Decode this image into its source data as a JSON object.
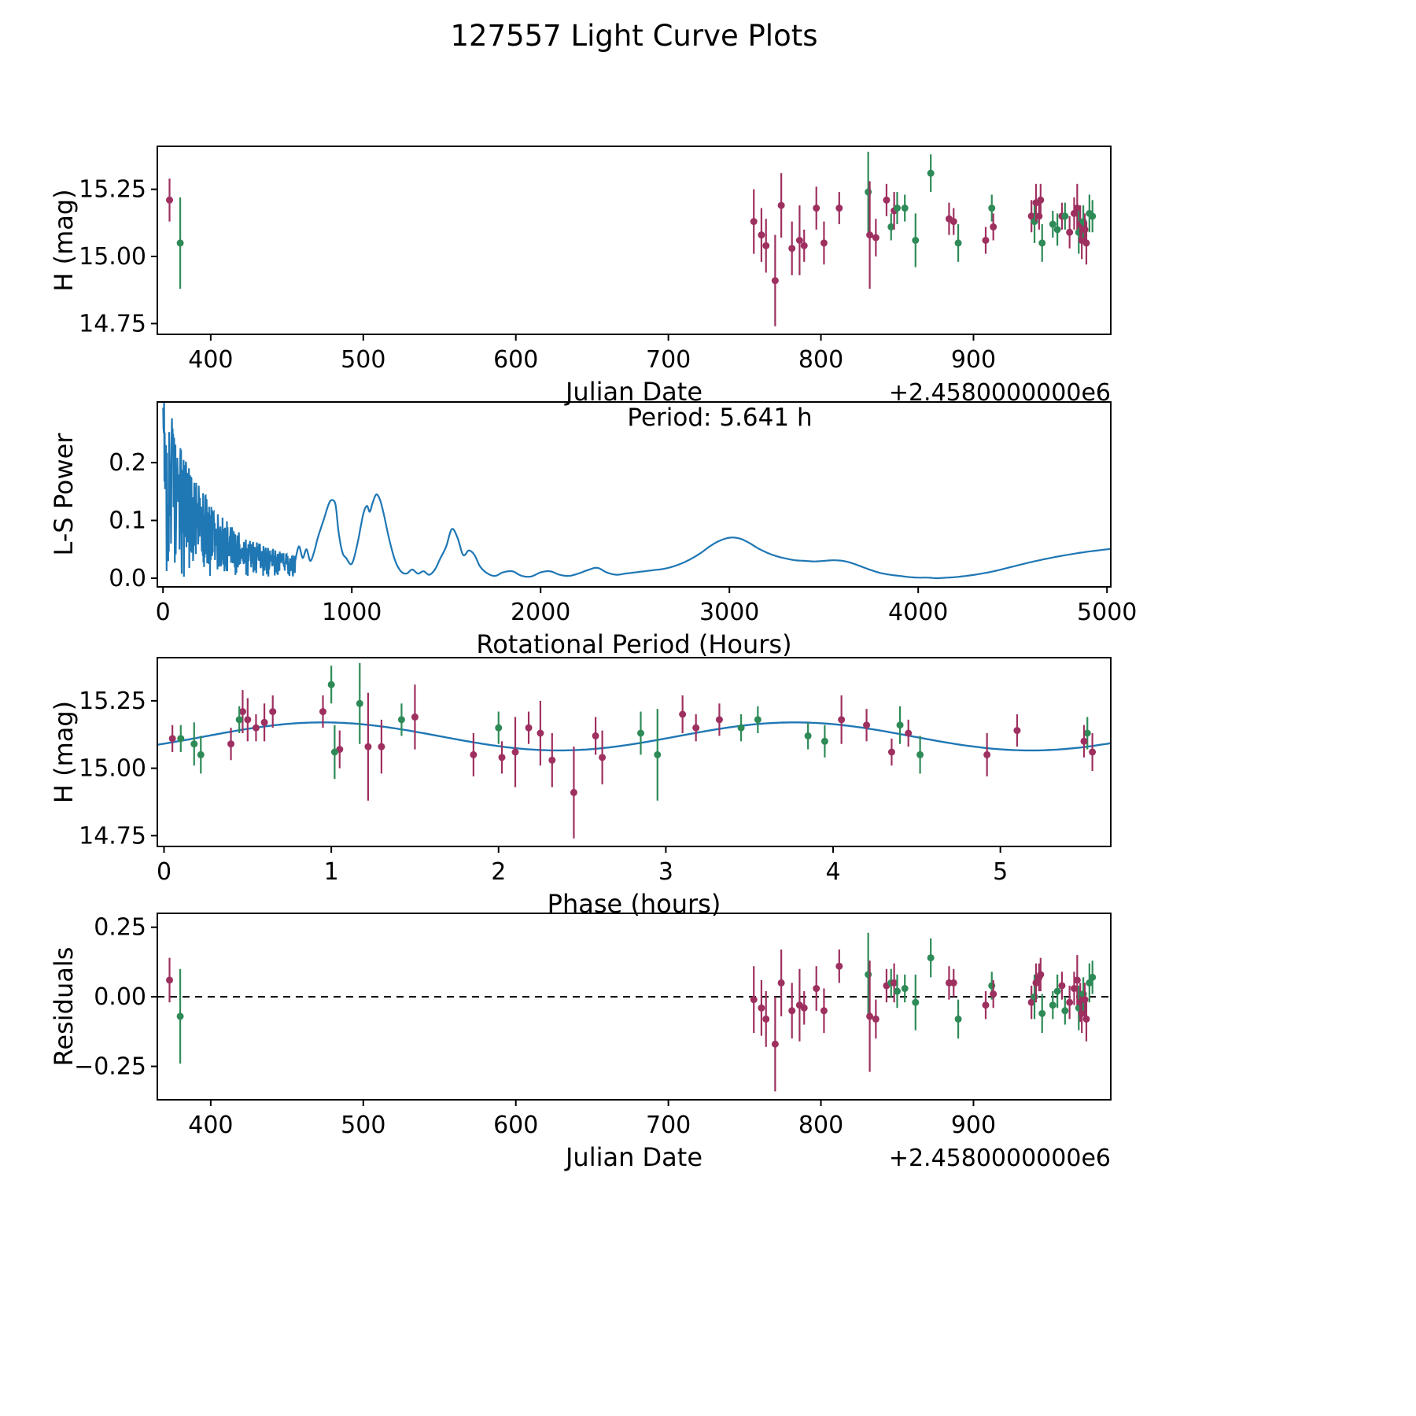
{
  "title": "127557 Light Curve Plots",
  "colors": {
    "purple": "#9e3060",
    "green": "#2e8b57",
    "line": "#1f77b4",
    "axis": "#000000"
  },
  "observations": [
    {
      "jd": 373,
      "mag": 15.21,
      "err": 0.08,
      "c": "p",
      "ph": 0.47,
      "res": 0.06
    },
    {
      "jd": 380,
      "mag": 15.05,
      "err": 0.17,
      "c": "g",
      "ph": 2.95,
      "res": -0.07
    },
    {
      "jd": 756,
      "mag": 15.13,
      "err": 0.12,
      "c": "p",
      "ph": 2.25,
      "res": -0.01
    },
    {
      "jd": 761,
      "mag": 15.08,
      "err": 0.1,
      "c": "p",
      "ph": 1.3,
      "res": -0.04
    },
    {
      "jd": 764,
      "mag": 15.04,
      "err": 0.1,
      "c": "p",
      "ph": 2.62,
      "res": -0.08
    },
    {
      "jd": 770,
      "mag": 14.91,
      "err": 0.17,
      "c": "p",
      "ph": 2.45,
      "res": -0.17
    },
    {
      "jd": 774,
      "mag": 15.19,
      "err": 0.12,
      "c": "p",
      "ph": 1.5,
      "res": 0.05
    },
    {
      "jd": 781,
      "mag": 15.03,
      "err": 0.1,
      "c": "p",
      "ph": 2.32,
      "res": -0.05
    },
    {
      "jd": 786,
      "mag": 15.06,
      "err": 0.13,
      "c": "p",
      "ph": 2.1,
      "res": -0.03
    },
    {
      "jd": 789,
      "mag": 15.04,
      "err": 0.06,
      "c": "p",
      "ph": 2.02,
      "res": -0.04
    },
    {
      "jd": 797,
      "mag": 15.18,
      "err": 0.08,
      "c": "p",
      "ph": 0.5,
      "res": 0.03
    },
    {
      "jd": 802,
      "mag": 15.05,
      "err": 0.08,
      "c": "p",
      "ph": 1.85,
      "res": -0.05
    },
    {
      "jd": 812,
      "mag": 15.18,
      "err": 0.06,
      "c": "p",
      "ph": 3.32,
      "res": 0.11
    },
    {
      "jd": 831,
      "mag": 15.24,
      "err": 0.15,
      "c": "g",
      "ph": 1.17,
      "res": 0.08
    },
    {
      "jd": 832,
      "mag": 15.08,
      "err": 0.2,
      "c": "p",
      "ph": 1.22,
      "res": -0.07
    },
    {
      "jd": 836,
      "mag": 15.07,
      "err": 0.07,
      "c": "p",
      "ph": 1.05,
      "res": -0.08
    },
    {
      "jd": 843,
      "mag": 15.21,
      "err": 0.06,
      "c": "p",
      "ph": 0.65,
      "res": 0.04
    },
    {
      "jd": 846,
      "mag": 15.11,
      "err": 0.05,
      "c": "g",
      "ph": 0.1,
      "res": 0.05
    },
    {
      "jd": 848,
      "mag": 15.17,
      "err": 0.07,
      "c": "p",
      "ph": 0.6,
      "res": 0.05
    },
    {
      "jd": 850,
      "mag": 15.18,
      "err": 0.06,
      "c": "g",
      "ph": 1.42,
      "res": 0.02
    },
    {
      "jd": 855,
      "mag": 15.18,
      "err": 0.05,
      "c": "g",
      "ph": 3.55,
      "res": 0.03
    },
    {
      "jd": 862,
      "mag": 15.06,
      "err": 0.1,
      "c": "g",
      "ph": 1.02,
      "res": -0.02
    },
    {
      "jd": 872,
      "mag": 15.31,
      "err": 0.07,
      "c": "g",
      "ph": 1.0,
      "res": 0.14
    },
    {
      "jd": 884,
      "mag": 15.14,
      "err": 0.06,
      "c": "p",
      "ph": 5.1,
      "res": 0.05
    },
    {
      "jd": 887,
      "mag": 15.13,
      "err": 0.05,
      "c": "p",
      "ph": 4.45,
      "res": 0.05
    },
    {
      "jd": 890,
      "mag": 15.05,
      "err": 0.07,
      "c": "g",
      "ph": 0.22,
      "res": -0.08
    },
    {
      "jd": 908,
      "mag": 15.06,
      "err": 0.05,
      "c": "p",
      "ph": 4.35,
      "res": -0.03
    },
    {
      "jd": 912,
      "mag": 15.18,
      "err": 0.05,
      "c": "g",
      "ph": 0.45,
      "res": 0.04
    },
    {
      "jd": 913,
      "mag": 15.11,
      "err": 0.05,
      "c": "p",
      "ph": 0.05,
      "res": 0.01
    },
    {
      "jd": 938,
      "mag": 15.15,
      "err": 0.06,
      "c": "p",
      "ph": 2.18,
      "res": -0.02
    },
    {
      "jd": 940,
      "mag": 15.13,
      "err": 0.08,
      "c": "g",
      "ph": 2.85,
      "res": 0.0
    },
    {
      "jd": 941,
      "mag": 15.2,
      "err": 0.07,
      "c": "p",
      "ph": 3.1,
      "res": 0.05
    },
    {
      "jd": 943,
      "mag": 15.15,
      "err": 0.05,
      "c": "p",
      "ph": 0.55,
      "res": 0.07
    },
    {
      "jd": 944,
      "mag": 15.21,
      "err": 0.06,
      "c": "p",
      "ph": 0.95,
      "res": 0.08
    },
    {
      "jd": 945,
      "mag": 15.05,
      "err": 0.07,
      "c": "g",
      "ph": 4.52,
      "res": -0.06
    },
    {
      "jd": 952,
      "mag": 15.12,
      "err": 0.05,
      "c": "g",
      "ph": 3.85,
      "res": -0.03
    },
    {
      "jd": 955,
      "mag": 15.1,
      "err": 0.06,
      "c": "g",
      "ph": 3.95,
      "res": 0.02
    },
    {
      "jd": 958,
      "mag": 15.15,
      "err": 0.05,
      "c": "p",
      "ph": 3.18,
      "res": 0.04
    },
    {
      "jd": 960,
      "mag": 15.15,
      "err": 0.05,
      "c": "g",
      "ph": 3.45,
      "res": -0.05
    },
    {
      "jd": 963,
      "mag": 15.09,
      "err": 0.06,
      "c": "p",
      "ph": 0.4,
      "res": -0.02
    },
    {
      "jd": 966,
      "mag": 15.16,
      "err": 0.06,
      "c": "p",
      "ph": 4.2,
      "res": 0.03
    },
    {
      "jd": 968,
      "mag": 15.18,
      "err": 0.09,
      "c": "p",
      "ph": 4.05,
      "res": 0.06
    },
    {
      "jd": 969,
      "mag": 15.09,
      "err": 0.08,
      "c": "g",
      "ph": 0.18,
      "res": -0.04
    },
    {
      "jd": 970,
      "mag": 15.12,
      "err": 0.07,
      "c": "p",
      "ph": 2.58,
      "res": -0.02
    },
    {
      "jd": 971,
      "mag": 15.06,
      "err": 0.07,
      "c": "p",
      "ph": 5.55,
      "res": -0.06
    },
    {
      "jd": 972,
      "mag": 15.13,
      "err": 0.06,
      "c": "g",
      "ph": 5.52,
      "res": 0.01
    },
    {
      "jd": 973,
      "mag": 15.1,
      "err": 0.06,
      "c": "p",
      "ph": 5.5,
      "res": -0.01
    },
    {
      "jd": 974,
      "mag": 15.05,
      "err": 0.08,
      "c": "p",
      "ph": 4.92,
      "res": -0.08
    },
    {
      "jd": 976,
      "mag": 15.16,
      "err": 0.07,
      "c": "g",
      "ph": 4.4,
      "res": 0.05
    },
    {
      "jd": 978,
      "mag": 15.15,
      "err": 0.06,
      "c": "g",
      "ph": 2.0,
      "res": 0.07
    }
  ],
  "chart_data": [
    {
      "id": "jd-lightcurve",
      "type": "scatter",
      "xlabel": "Julian Date",
      "ylabel": "H (mag)",
      "x_offset_label": "+2.4580000000e6",
      "xlim": [
        365,
        990
      ],
      "ylim": [
        14.71,
        15.41
      ],
      "xticks": [
        {
          "v": 400,
          "label": "400"
        },
        {
          "v": 500,
          "label": "500"
        },
        {
          "v": 600,
          "label": "600"
        },
        {
          "v": 700,
          "label": "700"
        },
        {
          "v": 800,
          "label": "800"
        },
        {
          "v": 900,
          "label": "900"
        }
      ],
      "yticks": [
        {
          "v": 14.75,
          "label": "14.75"
        },
        {
          "v": 15.0,
          "label": "15.00"
        },
        {
          "v": 15.25,
          "label": "15.25"
        }
      ],
      "points_source": "observations",
      "x_field": "jd",
      "y_field": "mag"
    },
    {
      "id": "periodogram",
      "type": "line",
      "xlabel": "Rotational Period (Hours)",
      "ylabel": "L-S Power",
      "annotation": "Period: 5.641 h",
      "best_period_hours": 5.641,
      "xlim": [
        -30,
        5020
      ],
      "ylim": [
        -0.015,
        0.305
      ],
      "xticks": [
        {
          "v": 0,
          "label": "0"
        },
        {
          "v": 1000,
          "label": "1000"
        },
        {
          "v": 2000,
          "label": "2000"
        },
        {
          "v": 3000,
          "label": "3000"
        },
        {
          "v": 4000,
          "label": "4000"
        },
        {
          "v": 5000,
          "label": "5000"
        }
      ],
      "yticks": [
        {
          "v": 0.0,
          "label": "0.0"
        },
        {
          "v": 0.1,
          "label": "0.1"
        },
        {
          "v": 0.2,
          "label": "0.2"
        }
      ],
      "noise": {
        "range": [
          1,
          700
        ],
        "n": 420,
        "seed": 12345,
        "power": 0.75,
        "env": {
          "a1": 0.285,
          "tau1": 220,
          "a2": 0.05,
          "tau2": 1200
        },
        "peak": 0.295
      },
      "line_points": [
        [
          700,
          0.03
        ],
        [
          720,
          0.055
        ],
        [
          740,
          0.035
        ],
        [
          760,
          0.05
        ],
        [
          780,
          0.03
        ],
        [
          800,
          0.045
        ],
        [
          820,
          0.07
        ],
        [
          850,
          0.1
        ],
        [
          880,
          0.13
        ],
        [
          900,
          0.135
        ],
        [
          915,
          0.125
        ],
        [
          930,
          0.08
        ],
        [
          950,
          0.045
        ],
        [
          970,
          0.035
        ],
        [
          1000,
          0.025
        ],
        [
          1030,
          0.06
        ],
        [
          1060,
          0.11
        ],
        [
          1080,
          0.125
        ],
        [
          1095,
          0.115
        ],
        [
          1110,
          0.13
        ],
        [
          1130,
          0.145
        ],
        [
          1150,
          0.135
        ],
        [
          1170,
          0.11
        ],
        [
          1200,
          0.065
        ],
        [
          1230,
          0.03
        ],
        [
          1260,
          0.012
        ],
        [
          1290,
          0.008
        ],
        [
          1320,
          0.015
        ],
        [
          1350,
          0.008
        ],
        [
          1380,
          0.012
        ],
        [
          1410,
          0.006
        ],
        [
          1440,
          0.015
        ],
        [
          1470,
          0.035
        ],
        [
          1500,
          0.055
        ],
        [
          1530,
          0.085
        ],
        [
          1560,
          0.07
        ],
        [
          1590,
          0.04
        ],
        [
          1620,
          0.048
        ],
        [
          1650,
          0.04
        ],
        [
          1680,
          0.02
        ],
        [
          1720,
          0.008
        ],
        [
          1760,
          0.004
        ],
        [
          1800,
          0.01
        ],
        [
          1850,
          0.012
        ],
        [
          1900,
          0.004
        ],
        [
          1950,
          0.003
        ],
        [
          2000,
          0.01
        ],
        [
          2050,
          0.012
        ],
        [
          2100,
          0.006
        ],
        [
          2150,
          0.004
        ],
        [
          2200,
          0.008
        ],
        [
          2250,
          0.014
        ],
        [
          2300,
          0.018
        ],
        [
          2350,
          0.01
        ],
        [
          2400,
          0.006
        ],
        [
          2450,
          0.008
        ],
        [
          2500,
          0.01
        ],
        [
          2550,
          0.012
        ],
        [
          2600,
          0.014
        ],
        [
          2650,
          0.016
        ],
        [
          2700,
          0.02
        ],
        [
          2750,
          0.026
        ],
        [
          2800,
          0.034
        ],
        [
          2850,
          0.044
        ],
        [
          2900,
          0.056
        ],
        [
          2950,
          0.065
        ],
        [
          3000,
          0.07
        ],
        [
          3050,
          0.069
        ],
        [
          3100,
          0.062
        ],
        [
          3150,
          0.052
        ],
        [
          3200,
          0.044
        ],
        [
          3250,
          0.038
        ],
        [
          3300,
          0.034
        ],
        [
          3350,
          0.031
        ],
        [
          3400,
          0.03
        ],
        [
          3450,
          0.029
        ],
        [
          3500,
          0.03
        ],
        [
          3550,
          0.031
        ],
        [
          3600,
          0.03
        ],
        [
          3650,
          0.026
        ],
        [
          3700,
          0.02
        ],
        [
          3750,
          0.014
        ],
        [
          3800,
          0.009
        ],
        [
          3850,
          0.006
        ],
        [
          3900,
          0.004
        ],
        [
          3950,
          0.002
        ],
        [
          4000,
          0.001
        ],
        [
          4050,
          0.001
        ],
        [
          4100,
          0.0
        ],
        [
          4150,
          0.001
        ],
        [
          4200,
          0.002
        ],
        [
          4300,
          0.006
        ],
        [
          4400,
          0.012
        ],
        [
          4500,
          0.02
        ],
        [
          4600,
          0.028
        ],
        [
          4700,
          0.035
        ],
        [
          4800,
          0.041
        ],
        [
          4900,
          0.046
        ],
        [
          5000,
          0.05
        ],
        [
          5020,
          0.051
        ]
      ]
    },
    {
      "id": "phase-folded",
      "type": "scatter-line",
      "xlabel": "Phase (hours)",
      "ylabel": "H (mag)",
      "xlim": [
        -0.04,
        5.66
      ],
      "ylim": [
        14.71,
        15.41
      ],
      "xticks": [
        {
          "v": 0,
          "label": "0"
        },
        {
          "v": 1,
          "label": "1"
        },
        {
          "v": 2,
          "label": "2"
        },
        {
          "v": 3,
          "label": "3"
        },
        {
          "v": 4,
          "label": "4"
        },
        {
          "v": 5,
          "label": "5"
        }
      ],
      "yticks": [
        {
          "v": 14.75,
          "label": "14.75"
        },
        {
          "v": 15.0,
          "label": "15.00"
        },
        {
          "v": 15.25,
          "label": "15.25"
        }
      ],
      "fit": {
        "mean": 15.118,
        "amplitude": 0.052,
        "period_hours": 2.8205,
        "phase_of_max": 0.95
      },
      "points_source": "observations",
      "x_field": "ph",
      "y_field": "mag"
    },
    {
      "id": "residuals",
      "type": "scatter",
      "xlabel": "Julian Date",
      "ylabel": "Residuals",
      "x_offset_label": "+2.4580000000e6",
      "xlim": [
        365,
        990
      ],
      "ylim": [
        -0.37,
        0.3
      ],
      "xticks": [
        {
          "v": 400,
          "label": "400"
        },
        {
          "v": 500,
          "label": "500"
        },
        {
          "v": 600,
          "label": "600"
        },
        {
          "v": 700,
          "label": "700"
        },
        {
          "v": 800,
          "label": "800"
        },
        {
          "v": 900,
          "label": "900"
        }
      ],
      "yticks": [
        {
          "v": -0.25,
          "label": "−0.25"
        },
        {
          "v": 0.0,
          "label": "0.00"
        },
        {
          "v": 0.25,
          "label": "0.25"
        }
      ],
      "zero_line": true,
      "points_source": "observations",
      "x_field": "jd",
      "y_field": "res"
    }
  ]
}
